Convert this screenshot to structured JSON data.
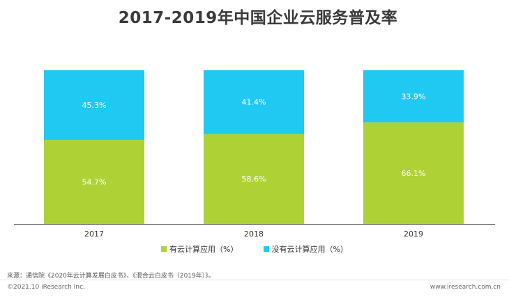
{
  "title": "2017-2019年中国企业云服务普及率",
  "colors": {
    "adopted": "#aed235",
    "not_adopted": "#1fc9f1",
    "axis": "#666666"
  },
  "chart_data": {
    "type": "bar",
    "stacked": true,
    "categories": [
      "2017",
      "2018",
      "2019"
    ],
    "series": [
      {
        "name": "有云计算应用（%）",
        "values": [
          54.7,
          58.6,
          66.1
        ],
        "labels": [
          "54.7%",
          "58.6%",
          "66.1%"
        ]
      },
      {
        "name": "没有云计算应用（%）",
        "values": [
          45.3,
          41.4,
          33.9
        ],
        "labels": [
          "45.3%",
          "41.4%",
          "33.9%"
        ]
      }
    ],
    "ylim": [
      0,
      100
    ],
    "legend_position": "bottom",
    "grid": false
  },
  "footer": {
    "source": "来源：通信院《2020年云计算发展白皮书》、《混合云白皮书（2019年）》。",
    "copyright": "©2021.10 iResearch Inc.",
    "site": "www.iresearch.com.cn"
  }
}
